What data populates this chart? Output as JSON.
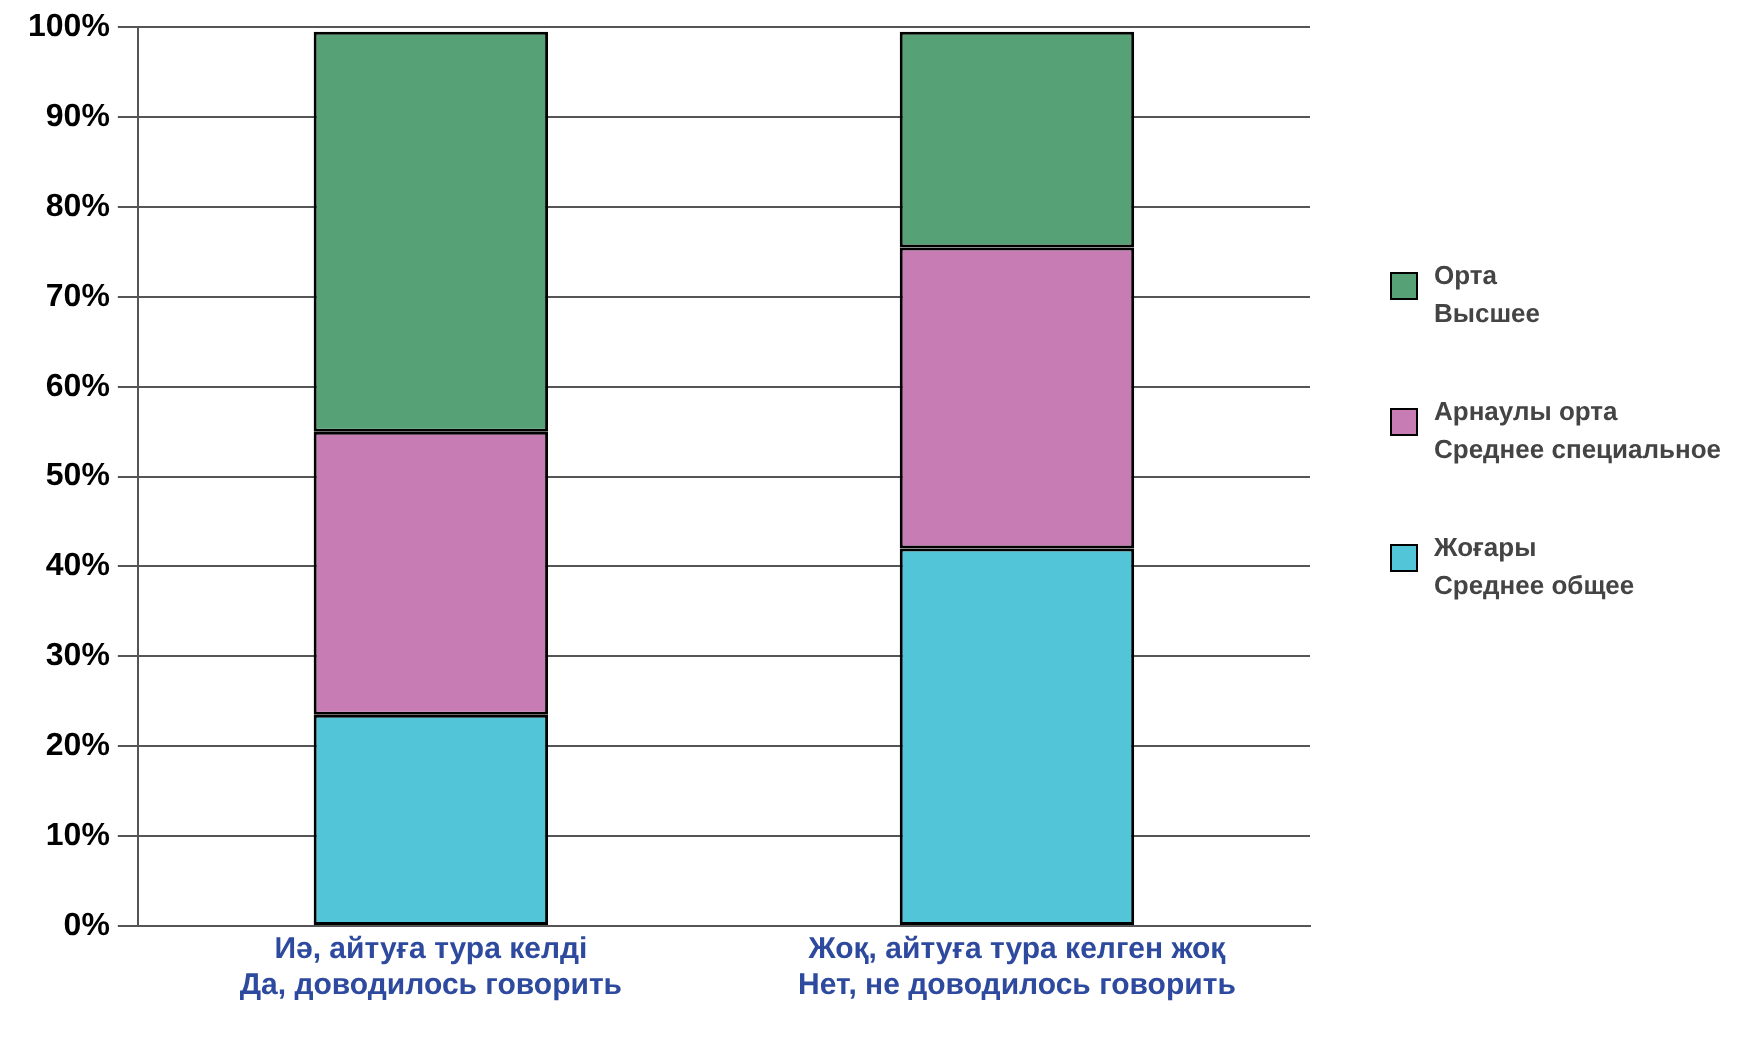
{
  "chart_data": {
    "type": "bar",
    "stacked": true,
    "categories": [
      "Иә, айтуға тура келді\nДа, доводилось говорить",
      "Жоқ, айтуға тура келген жоқ\nНет, не доводилось говорить"
    ],
    "series": [
      {
        "name": "Жоғары\nСреднее общее",
        "color": "#52c5d9",
        "values": [
          23.5,
          42
        ]
      },
      {
        "name": "Арнаулы орта\nСреднее специальное",
        "color": "#c77db4",
        "values": [
          31.5,
          33.5
        ]
      },
      {
        "name": "Орта\nВысшее",
        "color": "#56a276",
        "values": [
          44.5,
          24
        ]
      }
    ],
    "ylim": [
      0,
      100
    ],
    "yticks": [
      {
        "value": 0,
        "label": "0%"
      },
      {
        "value": 10,
        "label": "10%"
      },
      {
        "value": 20,
        "label": "20%"
      },
      {
        "value": 30,
        "label": "30%"
      },
      {
        "value": 40,
        "label": "40%"
      },
      {
        "value": 50,
        "label": "50%"
      },
      {
        "value": 60,
        "label": "60%"
      },
      {
        "value": 70,
        "label": "70%"
      },
      {
        "value": 80,
        "label": "80%"
      },
      {
        "value": 90,
        "label": "90%"
      },
      {
        "value": 100,
        "label": "100%"
      }
    ],
    "grid": "y",
    "legend": "right"
  }
}
